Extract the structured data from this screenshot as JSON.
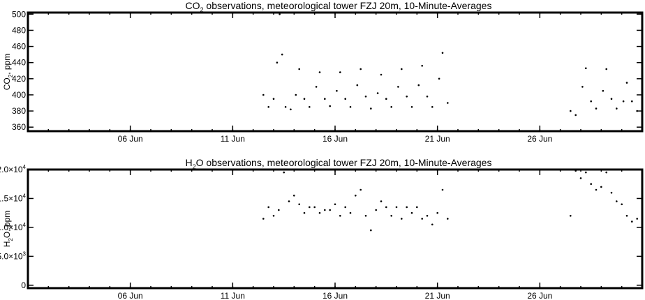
{
  "chart_data": [
    {
      "type": "scatter",
      "title": {
        "text": "CO",
        "sub": "2",
        "rest": " observations, meteorological tower FZJ 20m, 10-Minute-Averages"
      },
      "ylabel": {
        "text": "CO",
        "sub": "2",
        "rest": ", ppm"
      },
      "xlim": [
        "2016-06-01",
        "2016-07-01"
      ],
      "ylim": [
        355,
        502
      ],
      "yticks": [
        {
          "value": 360,
          "label": "360"
        },
        {
          "value": 380,
          "label": "380"
        },
        {
          "value": 400,
          "label": "400"
        },
        {
          "value": 420,
          "label": "420"
        },
        {
          "value": 440,
          "label": "440"
        },
        {
          "value": 460,
          "label": "460"
        },
        {
          "value": 480,
          "label": "480"
        },
        {
          "value": 500,
          "label": "500"
        }
      ],
      "xticks": [
        {
          "date": "2016-06-06",
          "label": "06 Jun"
        },
        {
          "date": "2016-06-11",
          "label": "11 Jun"
        },
        {
          "date": "2016-06-16",
          "label": "16 Jun"
        },
        {
          "date": "2016-06-21",
          "label": "21 Jun"
        },
        {
          "date": "2016-06-26",
          "label": "26 Jun"
        }
      ],
      "series": [
        {
          "color": "#000000",
          "x": [
            "2016-06-12 12:00",
            "2016-06-12 18:00",
            "2016-06-13 00:00",
            "2016-06-13 04:00",
            "2016-06-13 07:00",
            "2016-06-13 10:00",
            "2016-06-13 14:00",
            "2016-06-13 20:00",
            "2016-06-14 02:00",
            "2016-06-14 06:00",
            "2016-06-14 12:00",
            "2016-06-14 18:00",
            "2016-06-15 02:00",
            "2016-06-15 06:00",
            "2016-06-15 12:00",
            "2016-06-15 18:00",
            "2016-06-16 02:00",
            "2016-06-16 06:00",
            "2016-06-16 12:00",
            "2016-06-16 18:00",
            "2016-06-17 02:00",
            "2016-06-17 06:00",
            "2016-06-17 12:00",
            "2016-06-17 18:00",
            "2016-06-18 02:00",
            "2016-06-18 06:00",
            "2016-06-18 12:00",
            "2016-06-18 18:00",
            "2016-06-19 02:00",
            "2016-06-19 06:00",
            "2016-06-19 12:00",
            "2016-06-19 18:00",
            "2016-06-20 02:00",
            "2016-06-20 06:00",
            "2016-06-20 12:00",
            "2016-06-20 18:00",
            "2016-06-21 02:00",
            "2016-06-21 06:00",
            "2016-06-21 12:00",
            "2016-06-27 12:00",
            "2016-06-27 18:00",
            "2016-06-28 02:00",
            "2016-06-28 06:00",
            "2016-06-28 12:00",
            "2016-06-28 18:00",
            "2016-06-29 02:00",
            "2016-06-29 06:00",
            "2016-06-29 12:00",
            "2016-06-29 18:00",
            "2016-06-30 02:00",
            "2016-06-30 06:00",
            "2016-06-30 12:00",
            "2016-06-30 18:00",
            "2016-07-01 00:00"
          ],
          "y": [
            400,
            385,
            395,
            440,
            500,
            450,
            385,
            382,
            400,
            432,
            395,
            385,
            410,
            428,
            395,
            386,
            405,
            428,
            395,
            385,
            412,
            432,
            398,
            383,
            402,
            425,
            395,
            385,
            410,
            432,
            398,
            385,
            412,
            436,
            398,
            385,
            420,
            452,
            390,
            380,
            375,
            410,
            433,
            392,
            383,
            405,
            432,
            395,
            383,
            392,
            415,
            392,
            380,
            390
          ]
        }
      ]
    },
    {
      "type": "scatter",
      "title": {
        "text": "H",
        "sub": "2",
        "rest": "O observations, meteorological tower FZJ 20m, 10-Minute-Averages"
      },
      "ylabel": {
        "text": "H",
        "sub": "2",
        "rest": "O, ppm"
      },
      "xlim": [
        "2016-06-01",
        "2016-07-01"
      ],
      "ylim": [
        -500,
        20000
      ],
      "yticks": [
        {
          "value": 0,
          "label": "0"
        },
        {
          "value": 5000,
          "label": "5.0×10",
          "exp": "3"
        },
        {
          "value": 10000,
          "label": "1.0×10",
          "exp": "4"
        },
        {
          "value": 15000,
          "label": "1.5×10",
          "exp": "4"
        },
        {
          "value": 20000,
          "label": "2.0×10",
          "exp": "4"
        }
      ],
      "xticks": [
        {
          "date": "2016-06-06",
          "label": "06 Jun"
        },
        {
          "date": "2016-06-11",
          "label": "11 Jun"
        },
        {
          "date": "2016-06-16",
          "label": "16 Jun"
        },
        {
          "date": "2016-06-21",
          "label": "21 Jun"
        },
        {
          "date": "2016-06-26",
          "label": "26 Jun"
        }
      ],
      "series": [
        {
          "color": "#000000",
          "x": [
            "2016-06-12 12:00",
            "2016-06-12 18:00",
            "2016-06-13 00:00",
            "2016-06-13 06:00",
            "2016-06-13 12:00",
            "2016-06-13 18:00",
            "2016-06-14 00:00",
            "2016-06-14 06:00",
            "2016-06-14 12:00",
            "2016-06-14 18:00",
            "2016-06-15 00:00",
            "2016-06-15 06:00",
            "2016-06-15 12:00",
            "2016-06-15 18:00",
            "2016-06-16 00:00",
            "2016-06-16 06:00",
            "2016-06-16 12:00",
            "2016-06-16 18:00",
            "2016-06-17 00:00",
            "2016-06-17 06:00",
            "2016-06-17 12:00",
            "2016-06-17 18:00",
            "2016-06-18 00:00",
            "2016-06-18 06:00",
            "2016-06-18 12:00",
            "2016-06-18 18:00",
            "2016-06-19 00:00",
            "2016-06-19 06:00",
            "2016-06-19 12:00",
            "2016-06-19 18:00",
            "2016-06-20 00:00",
            "2016-06-20 06:00",
            "2016-06-20 12:00",
            "2016-06-20 18:00",
            "2016-06-21 00:00",
            "2016-06-21 06:00",
            "2016-06-21 12:00",
            "2016-06-27 12:00",
            "2016-06-27 18:00",
            "2016-06-28 00:00",
            "2016-06-28 06:00",
            "2016-06-28 12:00",
            "2016-06-28 18:00",
            "2016-06-29 00:00",
            "2016-06-29 06:00",
            "2016-06-29 12:00",
            "2016-06-29 18:00",
            "2016-06-30 00:00",
            "2016-06-30 06:00",
            "2016-06-30 12:00",
            "2016-06-30 18:00",
            "2016-07-01 00:00"
          ],
          "y": [
            11500,
            13500,
            12000,
            13000,
            19500,
            14500,
            15500,
            14000,
            12500,
            13500,
            13500,
            12500,
            13000,
            13000,
            14000,
            12000,
            13500,
            12500,
            15500,
            16500,
            12000,
            9500,
            13000,
            14500,
            13500,
            12000,
            13500,
            11500,
            13500,
            12500,
            13500,
            11500,
            12000,
            10500,
            12500,
            16500,
            11500,
            12000,
            19800,
            18500,
            19500,
            17500,
            16500,
            17000,
            19500,
            16000,
            14500,
            14000,
            12000,
            11000,
            11500,
            12500
          ]
        }
      ]
    }
  ]
}
